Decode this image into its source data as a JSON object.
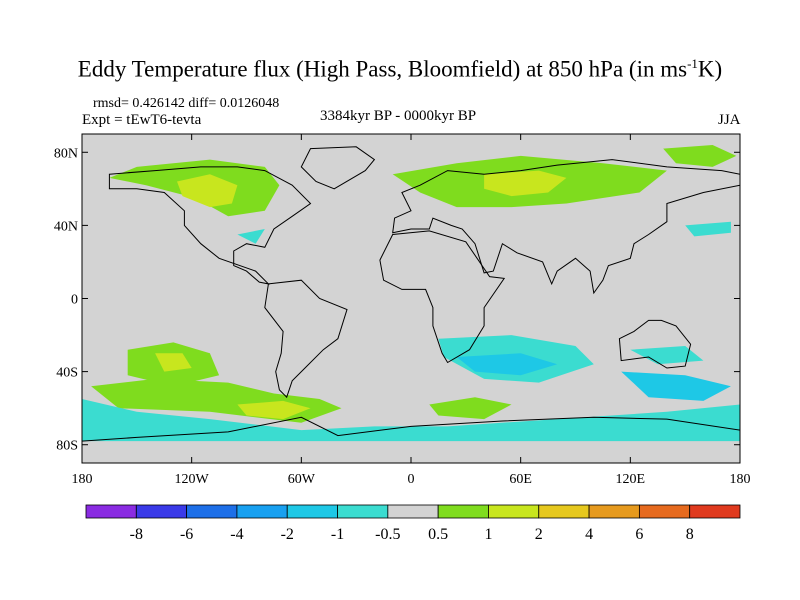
{
  "header": {
    "title_main": "Eddy Temperature flux (High Pass, Bloomfield) at 850 hPa (in ms",
    "title_sup": "-1",
    "title_end": "K)",
    "stats": "rmsd= 0.426142 diff= 0.0126048",
    "experiment": "Expt = tEwT6-tevta",
    "period": "3384kyr BP - 0000kyr BP",
    "season": "JJA"
  },
  "map": {
    "lat_labels": [
      "80N",
      "40N",
      "0",
      "40S",
      "80S"
    ],
    "lat_values": [
      80,
      40,
      0,
      -40,
      -80
    ],
    "lon_labels": [
      "180",
      "120W",
      "60W",
      "0",
      "60E",
      "120E",
      "180"
    ],
    "lon_values": [
      -180,
      -120,
      -60,
      0,
      60,
      120,
      180
    ],
    "lat_range": [
      -90,
      90
    ],
    "lon_range": [
      -180,
      180
    ],
    "background_color": "#d3d3d3"
  },
  "colorbar": {
    "labels": [
      "-8",
      "-6",
      "-4",
      "-2",
      "-1",
      "-0.5",
      "0.5",
      "1",
      "2",
      "4",
      "6",
      "8"
    ],
    "colors": [
      "#8a2be2",
      "#3a3ae8",
      "#1d6fe8",
      "#18a0f0",
      "#1ec8e6",
      "#3bdcd0",
      "#d3d3d3",
      "#7fdc1e",
      "#c8e61e",
      "#e6c81e",
      "#e69a1e",
      "#e66a1e",
      "#e03a1e"
    ]
  },
  "anomalies": [
    {
      "color": "#7fdc1e",
      "points": [
        [
          -150,
          72
        ],
        [
          -110,
          76
        ],
        [
          -80,
          72
        ],
        [
          -72,
          62
        ],
        [
          -80,
          48
        ],
        [
          -100,
          45
        ],
        [
          -118,
          55
        ],
        [
          -145,
          62
        ],
        [
          -165,
          66
        ]
      ]
    },
    {
      "color": "#c8e61e",
      "points": [
        [
          -128,
          64
        ],
        [
          -110,
          68
        ],
        [
          -95,
          62
        ],
        [
          -98,
          52
        ],
        [
          -110,
          50
        ],
        [
          -125,
          56
        ]
      ]
    },
    {
      "color": "#7fdc1e",
      "points": [
        [
          -10,
          68
        ],
        [
          25,
          74
        ],
        [
          60,
          78
        ],
        [
          105,
          74
        ],
        [
          140,
          70
        ],
        [
          125,
          58
        ],
        [
          85,
          52
        ],
        [
          55,
          50
        ],
        [
          25,
          50
        ],
        [
          5,
          58
        ]
      ]
    },
    {
      "color": "#c8e61e",
      "points": [
        [
          40,
          68
        ],
        [
          70,
          70
        ],
        [
          85,
          66
        ],
        [
          75,
          58
        ],
        [
          55,
          56
        ],
        [
          40,
          60
        ]
      ]
    },
    {
      "color": "#7fdc1e",
      "points": [
        [
          138,
          82
        ],
        [
          165,
          84
        ],
        [
          178,
          78
        ],
        [
          165,
          72
        ],
        [
          145,
          74
        ]
      ]
    },
    {
      "color": "#7fdc1e",
      "points": [
        [
          -155,
          -28
        ],
        [
          -130,
          -24
        ],
        [
          -110,
          -30
        ],
        [
          -105,
          -42
        ],
        [
          -130,
          -48
        ],
        [
          -155,
          -42
        ]
      ]
    },
    {
      "color": "#c8e61e",
      "points": [
        [
          -140,
          -30
        ],
        [
          -125,
          -30
        ],
        [
          -120,
          -38
        ],
        [
          -135,
          -40
        ]
      ]
    },
    {
      "color": "#7fdc1e",
      "points": [
        [
          -175,
          -48
        ],
        [
          -140,
          -44
        ],
        [
          -100,
          -46
        ],
        [
          -75,
          -52
        ],
        [
          -50,
          -55
        ],
        [
          -38,
          -60
        ],
        [
          -60,
          -68
        ],
        [
          -110,
          -62
        ],
        [
          -160,
          -60
        ]
      ]
    },
    {
      "color": "#c8e61e",
      "points": [
        [
          -95,
          -58
        ],
        [
          -70,
          -56
        ],
        [
          -55,
          -60
        ],
        [
          -70,
          -66
        ],
        [
          -90,
          -64
        ]
      ]
    },
    {
      "color": "#7fdc1e",
      "points": [
        [
          10,
          -58
        ],
        [
          35,
          -54
        ],
        [
          55,
          -58
        ],
        [
          40,
          -66
        ],
        [
          15,
          -64
        ]
      ]
    },
    {
      "color": "#3bdcd0",
      "points": [
        [
          15,
          -22
        ],
        [
          55,
          -20
        ],
        [
          90,
          -26
        ],
        [
          100,
          -36
        ],
        [
          70,
          -46
        ],
        [
          40,
          -44
        ],
        [
          18,
          -32
        ]
      ]
    },
    {
      "color": "#1ec8e6",
      "points": [
        [
          25,
          -32
        ],
        [
          60,
          -30
        ],
        [
          80,
          -36
        ],
        [
          60,
          -42
        ],
        [
          35,
          -40
        ]
      ]
    },
    {
      "color": "#3bdcd0",
      "points": [
        [
          -180,
          -55
        ],
        [
          -150,
          -62
        ],
        [
          -110,
          -66
        ],
        [
          -60,
          -72
        ],
        [
          -20,
          -70
        ],
        [
          20,
          -70
        ],
        [
          80,
          -66
        ],
        [
          140,
          -62
        ],
        [
          180,
          -58
        ],
        [
          180,
          -78
        ],
        [
          -180,
          -78
        ]
      ]
    },
    {
      "color": "#1ec8e6",
      "points": [
        [
          115,
          -40
        ],
        [
          150,
          -42
        ],
        [
          175,
          -48
        ],
        [
          160,
          -56
        ],
        [
          130,
          -54
        ]
      ]
    },
    {
      "color": "#3bdcd0",
      "points": [
        [
          120,
          -28
        ],
        [
          150,
          -26
        ],
        [
          160,
          -34
        ],
        [
          135,
          -36
        ]
      ]
    },
    {
      "color": "#3bdcd0",
      "points": [
        [
          150,
          40
        ],
        [
          175,
          42
        ],
        [
          175,
          36
        ],
        [
          155,
          34
        ]
      ]
    },
    {
      "color": "#3bdcd0",
      "points": [
        [
          -95,
          35
        ],
        [
          -80,
          38
        ],
        [
          -85,
          30
        ]
      ]
    }
  ],
  "land": [
    {
      "name": "north-america",
      "points": [
        [
          -165,
          68
        ],
        [
          -140,
          70
        ],
        [
          -115,
          72
        ],
        [
          -95,
          72
        ],
        [
          -80,
          70
        ],
        [
          -65,
          62
        ],
        [
          -55,
          52
        ],
        [
          -65,
          45
        ],
        [
          -75,
          38
        ],
        [
          -80,
          28
        ],
        [
          -90,
          30
        ],
        [
          -97,
          26
        ],
        [
          -97,
          18
        ],
        [
          -90,
          15
        ],
        [
          -83,
          9
        ],
        [
          -78,
          8
        ],
        [
          -85,
          15
        ],
        [
          -105,
          22
        ],
        [
          -115,
          30
        ],
        [
          -124,
          40
        ],
        [
          -124,
          48
        ],
        [
          -135,
          58
        ],
        [
          -150,
          60
        ],
        [
          -165,
          60
        ]
      ]
    },
    {
      "name": "greenland",
      "points": [
        [
          -55,
          82
        ],
        [
          -30,
          83
        ],
        [
          -20,
          76
        ],
        [
          -25,
          70
        ],
        [
          -42,
          60
        ],
        [
          -52,
          64
        ],
        [
          -60,
          72
        ]
      ]
    },
    {
      "name": "south-america",
      "points": [
        [
          -78,
          8
        ],
        [
          -60,
          10
        ],
        [
          -50,
          0
        ],
        [
          -35,
          -6
        ],
        [
          -40,
          -22
        ],
        [
          -48,
          -28
        ],
        [
          -58,
          -38
        ],
        [
          -65,
          -45
        ],
        [
          -68,
          -54
        ],
        [
          -72,
          -50
        ],
        [
          -74,
          -40
        ],
        [
          -71,
          -30
        ],
        [
          -70,
          -18
        ],
        [
          -80,
          -5
        ]
      ]
    },
    {
      "name": "eurasia",
      "points": [
        [
          -10,
          36
        ],
        [
          -9,
          44
        ],
        [
          0,
          48
        ],
        [
          -5,
          58
        ],
        [
          5,
          62
        ],
        [
          20,
          70
        ],
        [
          40,
          68
        ],
        [
          60,
          70
        ],
        [
          80,
          73
        ],
        [
          110,
          76
        ],
        [
          140,
          72
        ],
        [
          170,
          70
        ],
        [
          180,
          68
        ],
        [
          180,
          62
        ],
        [
          160,
          58
        ],
        [
          140,
          52
        ],
        [
          140,
          42
        ],
        [
          130,
          35
        ],
        [
          122,
          30
        ],
        [
          120,
          22
        ],
        [
          108,
          18
        ],
        [
          105,
          10
        ],
        [
          100,
          3
        ],
        [
          98,
          15
        ],
        [
          90,
          22
        ],
        [
          80,
          15
        ],
        [
          77,
          8
        ],
        [
          72,
          20
        ],
        [
          58,
          25
        ],
        [
          50,
          30
        ],
        [
          45,
          15
        ],
        [
          40,
          14
        ],
        [
          35,
          30
        ],
        [
          28,
          38
        ],
        [
          22,
          40
        ],
        [
          12,
          44
        ],
        [
          10,
          38
        ],
        [
          0,
          38
        ]
      ]
    },
    {
      "name": "africa",
      "points": [
        [
          -17,
          21
        ],
        [
          -10,
          35
        ],
        [
          10,
          37
        ],
        [
          30,
          31
        ],
        [
          43,
          12
        ],
        [
          51,
          11
        ],
        [
          40,
          -5
        ],
        [
          40,
          -15
        ],
        [
          32,
          -28
        ],
        [
          20,
          -35
        ],
        [
          17,
          -30
        ],
        [
          12,
          -15
        ],
        [
          12,
          -5
        ],
        [
          8,
          5
        ],
        [
          -5,
          5
        ],
        [
          -15,
          10
        ]
      ]
    },
    {
      "name": "australia",
      "points": [
        [
          114,
          -22
        ],
        [
          122,
          -18
        ],
        [
          130,
          -12
        ],
        [
          137,
          -12
        ],
        [
          145,
          -15
        ],
        [
          153,
          -25
        ],
        [
          150,
          -37
        ],
        [
          140,
          -38
        ],
        [
          130,
          -32
        ],
        [
          115,
          -34
        ]
      ]
    },
    {
      "name": "antarctica",
      "points": [
        [
          -180,
          -78
        ],
        [
          -150,
          -76
        ],
        [
          -100,
          -73
        ],
        [
          -60,
          -65
        ],
        [
          -40,
          -75
        ],
        [
          0,
          -70
        ],
        [
          50,
          -67
        ],
        [
          100,
          -65
        ],
        [
          140,
          -66
        ],
        [
          180,
          -72
        ],
        [
          180,
          -90
        ],
        [
          -180,
          -90
        ]
      ]
    }
  ]
}
